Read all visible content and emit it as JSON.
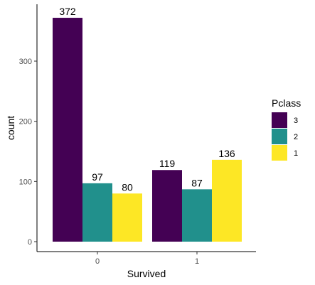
{
  "chart_data": {
    "type": "bar",
    "xlabel": "Survived",
    "ylabel": "count",
    "categories": [
      "0",
      "1"
    ],
    "ylim": [
      0,
      390
    ],
    "yticks": [
      0,
      100,
      200,
      300
    ],
    "grid": false,
    "legend": {
      "title": "Pclass",
      "position": "right",
      "entries": [
        {
          "label": "3",
          "color": "#440154"
        },
        {
          "label": "2",
          "color": "#21908C"
        },
        {
          "label": "1",
          "color": "#FDE725"
        }
      ]
    },
    "series": [
      {
        "name": "3",
        "color": "#440154",
        "values": [
          372,
          119
        ]
      },
      {
        "name": "2",
        "color": "#21908C",
        "values": [
          97,
          87
        ]
      },
      {
        "name": "1",
        "color": "#FDE725",
        "values": [
          80,
          136
        ]
      }
    ]
  }
}
